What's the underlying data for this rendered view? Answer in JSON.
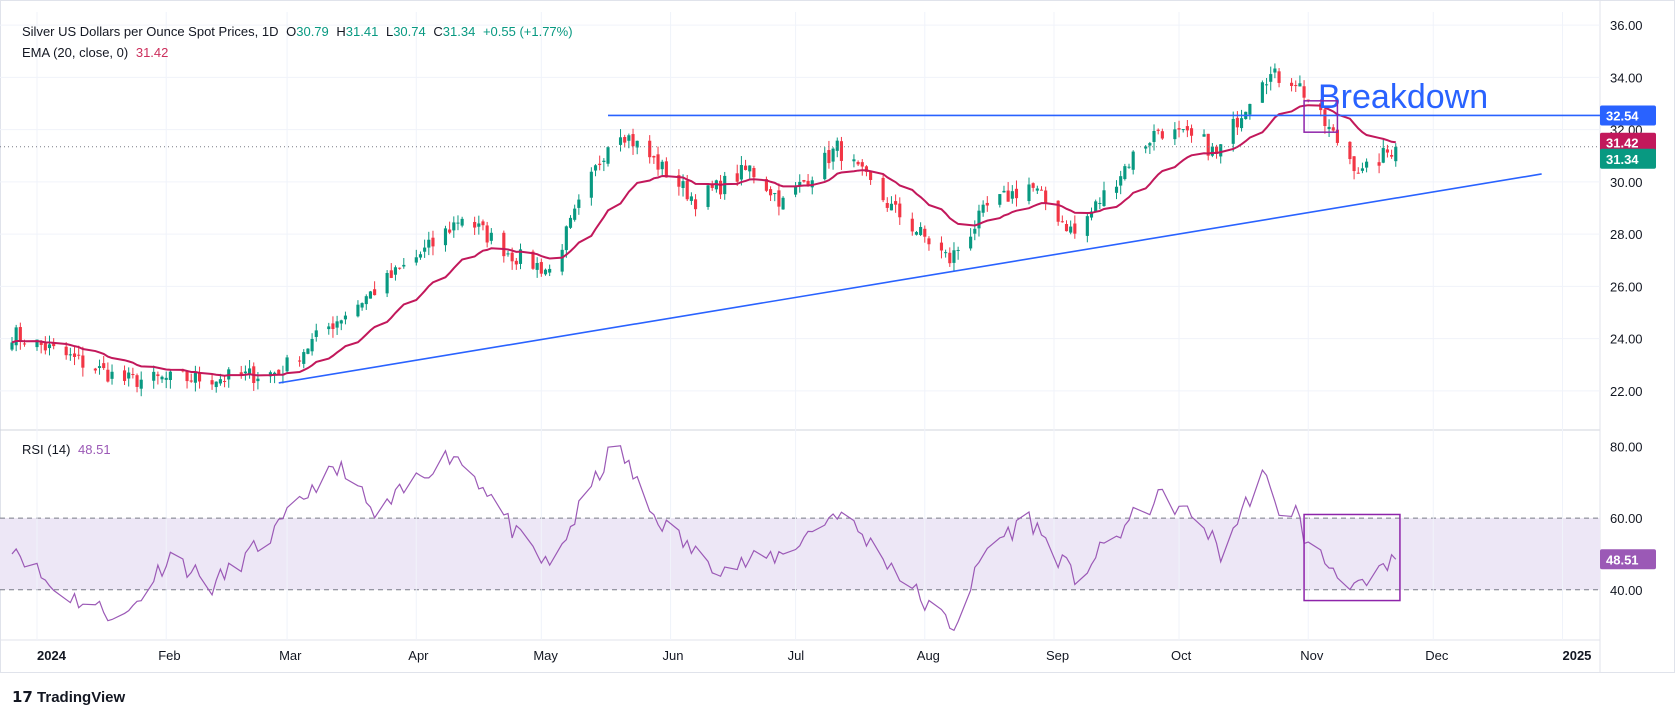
{
  "header": {
    "symbol": "Silver US Dollars per Ounce Spot Prices, 1D",
    "o_label": "O",
    "o": "30.79",
    "h_label": "H",
    "h": "31.41",
    "l_label": "L",
    "l": "30.74",
    "c_label": "C",
    "c": "31.34",
    "change": "+0.55 (+1.77%)",
    "ema_label": "EMA (20, close, 0)",
    "ema_value": "31.42",
    "rsi_label": "RSI (14)",
    "rsi_value": "48.51"
  },
  "brand": "TradingView",
  "colors": {
    "up": "#089981",
    "down": "#f23645",
    "ema": "#c2185b",
    "trend": "#2962ff",
    "rsi": "#9b59b6",
    "rsi_band": "#ede7f6",
    "box": "#8e24aa"
  },
  "chart_data": [
    {
      "type": "candlestick",
      "title": "Silver US Dollars per Ounce Spot Prices, 1D",
      "ylim": [
        20.5,
        36.5
      ],
      "y_ticks": [
        "22.00",
        "24.00",
        "26.00",
        "28.00",
        "30.00",
        "32.00",
        "34.00",
        "36.00"
      ],
      "x_ticks": [
        "2024",
        "Feb",
        "Mar",
        "Apr",
        "May",
        "Jun",
        "Jul",
        "Aug",
        "Sep",
        "Oct",
        "Nov",
        "Dec",
        "2025"
      ],
      "date_range": [
        "2023-12-26",
        "2025-01-10"
      ],
      "month_anchors": [
        {
          "date": "2023-12-26",
          "price": 24.2
        },
        {
          "date": "2024-01-22",
          "price": 22.4
        },
        {
          "date": "2024-02-15",
          "price": 22.5
        },
        {
          "date": "2024-02-28",
          "price": 22.7
        },
        {
          "date": "2024-03-12",
          "price": 24.6
        },
        {
          "date": "2024-04-05",
          "price": 27.6
        },
        {
          "date": "2024-04-12",
          "price": 28.7
        },
        {
          "date": "2024-04-24",
          "price": 27.2
        },
        {
          "date": "2024-05-03",
          "price": 26.6
        },
        {
          "date": "2024-05-17",
          "price": 31.5
        },
        {
          "date": "2024-05-20",
          "price": 32.0
        },
        {
          "date": "2024-06-07",
          "price": 29.3
        },
        {
          "date": "2024-06-20",
          "price": 30.5
        },
        {
          "date": "2024-06-28",
          "price": 29.2
        },
        {
          "date": "2024-07-11",
          "price": 31.3
        },
        {
          "date": "2024-07-24",
          "price": 29.0
        },
        {
          "date": "2024-08-07",
          "price": 27.0
        },
        {
          "date": "2024-08-16",
          "price": 29.0
        },
        {
          "date": "2024-08-26",
          "price": 29.9
        },
        {
          "date": "2024-09-06",
          "price": 28.0
        },
        {
          "date": "2024-09-20",
          "price": 31.0
        },
        {
          "date": "2024-09-26",
          "price": 32.0
        },
        {
          "date": "2024-10-07",
          "price": 31.5
        },
        {
          "date": "2024-10-10",
          "price": 31.0
        },
        {
          "date": "2024-10-21",
          "price": 34.1
        },
        {
          "date": "2024-10-29",
          "price": 33.9
        },
        {
          "date": "2024-11-04",
          "price": 32.4
        },
        {
          "date": "2024-11-14",
          "price": 30.3
        },
        {
          "date": "2024-11-19",
          "price": 31.0
        },
        {
          "date": "2024-11-22",
          "price": 31.34
        }
      ],
      "trendlines": [
        {
          "name": "horizontal resistance",
          "from": {
            "date": "2024-05-17",
            "price": 32.54
          },
          "to": {
            "date": "2025-01-10",
            "price": 32.54
          }
        },
        {
          "name": "ascending support",
          "from": {
            "date": "2024-02-28",
            "price": 22.3
          },
          "to": {
            "date": "2024-12-27",
            "price": 30.3
          }
        }
      ],
      "annotation": "Breakdown",
      "box": {
        "from": "2024-10-31",
        "to": "2024-11-08",
        "price_low": 31.9,
        "price_high": 33.1
      },
      "price_labels": [
        {
          "value": "32.54",
          "color": "#2962ff"
        },
        {
          "value": "31.42",
          "color": "#c2185b"
        },
        {
          "value": "31.34",
          "color": "#089981"
        }
      ]
    },
    {
      "type": "line",
      "title": "RSI (14)",
      "ylim": [
        26,
        84
      ],
      "y_ticks": [
        "40.00",
        "60.00",
        "80.00"
      ],
      "band": [
        40,
        60
      ],
      "anchors": [
        {
          "date": "2023-12-26",
          "value": 53
        },
        {
          "date": "2024-01-05",
          "value": 40
        },
        {
          "date": "2024-01-22",
          "value": 32
        },
        {
          "date": "2024-02-02",
          "value": 50
        },
        {
          "date": "2024-02-12",
          "value": 41
        },
        {
          "date": "2024-02-28",
          "value": 57
        },
        {
          "date": "2024-03-08",
          "value": 70
        },
        {
          "date": "2024-03-15",
          "value": 74
        },
        {
          "date": "2024-03-22",
          "value": 60
        },
        {
          "date": "2024-04-05",
          "value": 75
        },
        {
          "date": "2024-04-10",
          "value": 78
        },
        {
          "date": "2024-04-18",
          "value": 68
        },
        {
          "date": "2024-04-25",
          "value": 55
        },
        {
          "date": "2024-05-03",
          "value": 46
        },
        {
          "date": "2024-05-10",
          "value": 62
        },
        {
          "date": "2024-05-17",
          "value": 77
        },
        {
          "date": "2024-05-20",
          "value": 79
        },
        {
          "date": "2024-05-27",
          "value": 62
        },
        {
          "date": "2024-06-07",
          "value": 50
        },
        {
          "date": "2024-06-14",
          "value": 46
        },
        {
          "date": "2024-06-28",
          "value": 50
        },
        {
          "date": "2024-07-11",
          "value": 62
        },
        {
          "date": "2024-07-24",
          "value": 47
        },
        {
          "date": "2024-08-02",
          "value": 35
        },
        {
          "date": "2024-08-08",
          "value": 30
        },
        {
          "date": "2024-08-16",
          "value": 52
        },
        {
          "date": "2024-08-26",
          "value": 60
        },
        {
          "date": "2024-09-06",
          "value": 43
        },
        {
          "date": "2024-09-20",
          "value": 60
        },
        {
          "date": "2024-09-27",
          "value": 66
        },
        {
          "date": "2024-10-07",
          "value": 58
        },
        {
          "date": "2024-10-11",
          "value": 50
        },
        {
          "date": "2024-10-21",
          "value": 73
        },
        {
          "date": "2024-10-24",
          "value": 63
        },
        {
          "date": "2024-10-29",
          "value": 62
        },
        {
          "date": "2024-11-01",
          "value": 52
        },
        {
          "date": "2024-11-07",
          "value": 46
        },
        {
          "date": "2024-11-14",
          "value": 40
        },
        {
          "date": "2024-11-19",
          "value": 45
        },
        {
          "date": "2024-11-22",
          "value": 48.51
        }
      ],
      "box": {
        "from": "2024-10-31",
        "to": "2024-11-23",
        "value_low": 37,
        "value_high": 61
      },
      "value_label": {
        "value": "48.51",
        "color": "#9b59b6"
      }
    }
  ]
}
